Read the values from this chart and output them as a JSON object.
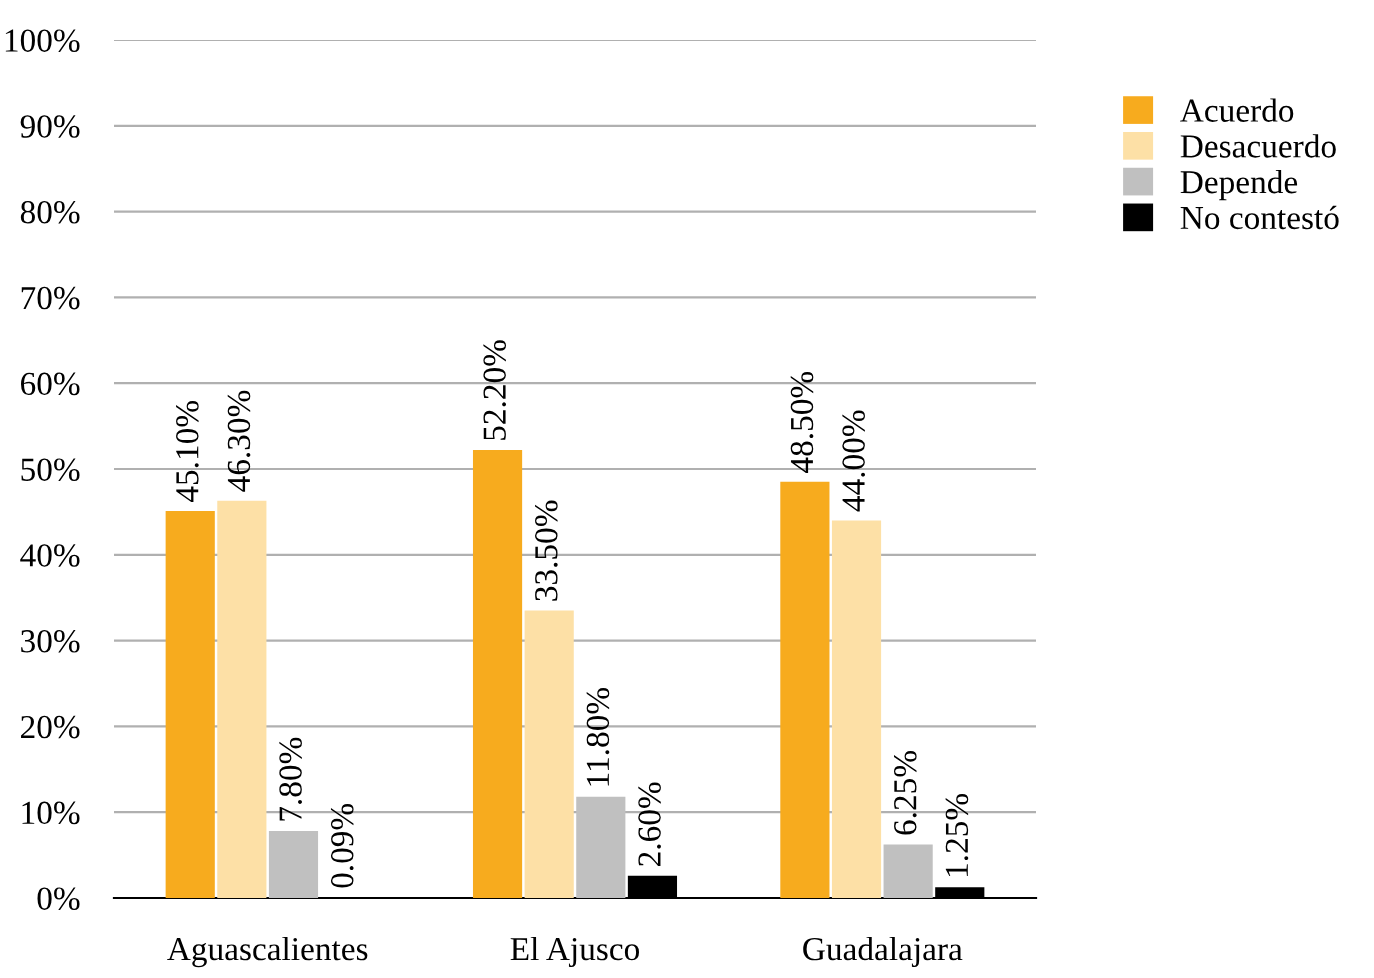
{
  "chart_data": {
    "type": "bar",
    "categories": [
      "Aguascalientes",
      "El Ajusco",
      "Guadalajara"
    ],
    "series": [
      {
        "name": "Acuerdo",
        "color": "#f7ab1e",
        "values": [
          45.1,
          52.2,
          48.5
        ],
        "value_labels": [
          "45.10%",
          "52.20%",
          "48.50%"
        ]
      },
      {
        "name": "Desacuerdo",
        "color": "#fde0a6",
        "values": [
          46.3,
          33.5,
          44.0
        ],
        "value_labels": [
          "46.30%",
          "33.50%",
          "44.00%"
        ]
      },
      {
        "name": "Depende",
        "color": "#c0c0c0",
        "values": [
          7.8,
          11.8,
          6.25
        ],
        "value_labels": [
          "7.80%",
          "11.80%",
          "6.25%"
        ]
      },
      {
        "name": "No contestó",
        "color": "#000000",
        "values": [
          0.09,
          2.6,
          1.25
        ],
        "value_labels": [
          "0.09%",
          "2.60%",
          "1.25%"
        ]
      }
    ],
    "ylim": [
      0,
      100
    ],
    "yticks": [
      {
        "value": 0,
        "label": "0%"
      },
      {
        "value": 10,
        "label": "10%"
      },
      {
        "value": 20,
        "label": "20%"
      },
      {
        "value": 30,
        "label": "30%"
      },
      {
        "value": 40,
        "label": "40%"
      },
      {
        "value": 50,
        "label": "50%"
      },
      {
        "value": 60,
        "label": "60%"
      },
      {
        "value": 70,
        "label": "70%"
      },
      {
        "value": 80,
        "label": "80%"
      },
      {
        "value": 90,
        "label": "90%"
      },
      {
        "value": 100,
        "label": "100%"
      }
    ],
    "grid": "y",
    "legend": "right"
  }
}
